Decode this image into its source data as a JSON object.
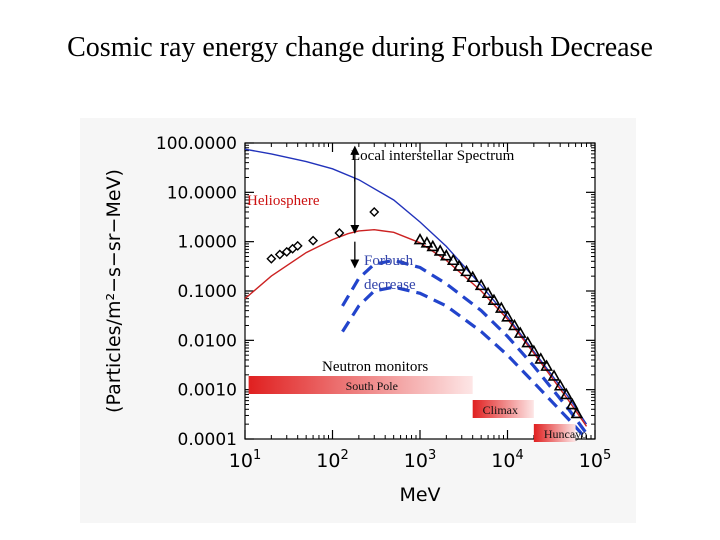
{
  "slide": {
    "title": "Cosmic ray energy change during Forbush Decrease"
  },
  "chart_data": {
    "type": "line",
    "title": "",
    "xlabel": "MeV",
    "ylabel": "(Particles/m²−s−sr−MeV)",
    "xscale": "log",
    "yscale": "log",
    "xlim": [
      10,
      100000
    ],
    "ylim": [
      0.0001,
      100
    ],
    "x_ticks": [
      10,
      100,
      1000,
      10000,
      100000
    ],
    "y_ticks": [
      100,
      10,
      1,
      0.1,
      0.01,
      0.001,
      0.0001
    ],
    "x_tick_labels": [
      {
        "base": "10",
        "exp": "1"
      },
      {
        "base": "10",
        "exp": "2"
      },
      {
        "base": "10",
        "exp": "3"
      },
      {
        "base": "10",
        "exp": "4"
      },
      {
        "base": "10",
        "exp": "5"
      }
    ],
    "y_tick_labels": [
      "100.0000",
      "10.0000",
      "1.0000",
      "0.1000",
      "0.0100",
      "0.0010",
      "0.0001"
    ],
    "series": [
      {
        "name": "Local interstellar Spectrum",
        "color": "#2233bb",
        "style": "solid",
        "x": [
          10,
          20,
          50,
          100,
          200,
          500,
          1000,
          2000,
          5000,
          10000,
          20000,
          50000,
          80000
        ],
        "y": [
          75,
          60,
          42,
          30,
          18,
          7,
          2.5,
          0.8,
          0.13,
          0.03,
          0.006,
          0.0007,
          0.0002
        ]
      },
      {
        "name": "Heliosphere",
        "color": "#cc2222",
        "style": "solid",
        "x": [
          10,
          20,
          50,
          100,
          150,
          200,
          300,
          500,
          1000,
          2000,
          5000,
          10000,
          20000,
          50000,
          80000
        ],
        "y": [
          0.07,
          0.2,
          0.6,
          1.1,
          1.45,
          1.65,
          1.75,
          1.55,
          0.95,
          0.42,
          0.1,
          0.027,
          0.0055,
          0.0006,
          0.00018
        ]
      },
      {
        "name": "Forbush decrease (upper)",
        "color": "#2244cc",
        "style": "dashed",
        "x": [
          130,
          200,
          300,
          500,
          1000,
          2000,
          5000,
          10000,
          20000,
          50000,
          80000
        ],
        "y": [
          0.05,
          0.18,
          0.35,
          0.42,
          0.3,
          0.14,
          0.04,
          0.012,
          0.003,
          0.0004,
          0.00013
        ]
      },
      {
        "name": "Forbush decrease (lower)",
        "color": "#2244cc",
        "style": "dashed",
        "x": [
          130,
          200,
          300,
          500,
          1000,
          2000,
          5000,
          10000,
          20000,
          50000,
          80000
        ],
        "y": [
          0.015,
          0.05,
          0.1,
          0.12,
          0.09,
          0.05,
          0.015,
          0.005,
          0.0014,
          0.00025,
          0.0001
        ]
      }
    ],
    "markers": [
      {
        "symbol": "diamond",
        "x": [
          20,
          25,
          30,
          35,
          40,
          60,
          120,
          300
        ],
        "y": [
          0.45,
          0.55,
          0.62,
          0.72,
          0.82,
          1.05,
          1.5,
          4.0
        ]
      },
      {
        "symbol": "triangle",
        "x": [
          1000,
          1200,
          1400,
          1700,
          2000,
          2400,
          2800,
          3400,
          4000,
          5000,
          6000,
          7000,
          8500,
          10000,
          12000,
          14000,
          17000,
          20000,
          24000,
          28000,
          34000,
          40000,
          47000,
          55000,
          62000
        ],
        "y": [
          1.1,
          0.95,
          0.8,
          0.65,
          0.52,
          0.42,
          0.32,
          0.25,
          0.19,
          0.13,
          0.09,
          0.065,
          0.045,
          0.03,
          0.02,
          0.014,
          0.009,
          0.006,
          0.0042,
          0.003,
          0.0019,
          0.0012,
          0.0008,
          0.0005,
          0.00033
        ]
      }
    ],
    "annotations": {
      "lis_label": "Local interstellar Spectrum",
      "heliosphere_label": "Heliosphere",
      "forbush_label_line1": "Forbush",
      "forbush_label_line2": "decrease",
      "neutron_monitors_label": "Neutron monitors"
    },
    "cutoff_bars": [
      {
        "name": "South Pole",
        "x_start": 11,
        "x_end": 4000,
        "color": "#e02020"
      },
      {
        "name": "Climax",
        "x_start": 4000,
        "x_end": 20000,
        "color": "#e02020"
      },
      {
        "name": "Huncayo",
        "x_start": 20000,
        "x_end": 60000,
        "color": "#e02020"
      }
    ],
    "grid": false
  }
}
